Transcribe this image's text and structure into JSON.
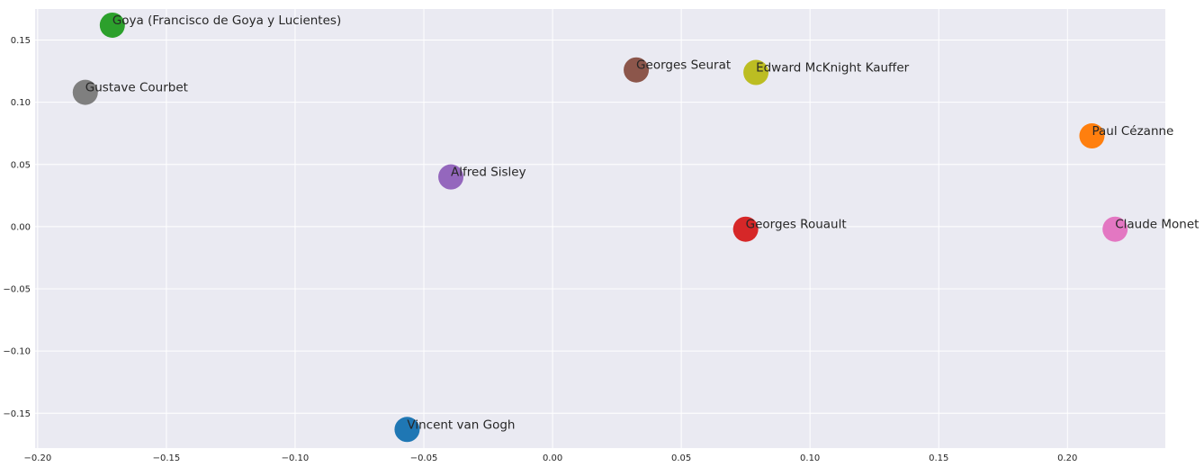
{
  "chart_data": {
    "type": "scatter",
    "title": "",
    "xlabel": "",
    "ylabel": "",
    "xlim": [
      -0.201,
      0.238
    ],
    "ylim": [
      -0.178,
      0.175
    ],
    "grid": true,
    "background": "#eaeaf2",
    "x_ticks": [
      -0.2,
      -0.15,
      -0.1,
      -0.05,
      0.0,
      0.05,
      0.1,
      0.15,
      0.2
    ],
    "x_tick_labels": [
      "−0.20",
      "−0.15",
      "−0.10",
      "−0.05",
      "0.00",
      "0.05",
      "0.10",
      "0.15",
      "0.20"
    ],
    "y_ticks": [
      0.15,
      0.1,
      0.05,
      0.0,
      -0.05,
      -0.1,
      -0.15
    ],
    "y_tick_labels": [
      "0.15",
      "0.10",
      "0.05",
      "0.00",
      "−0.05",
      "−0.10",
      "−0.15"
    ],
    "points": [
      {
        "label": "Vincent van Gogh",
        "x": -0.0565,
        "y": -0.163,
        "color": "#1f77b4"
      },
      {
        "label": "Paul Cézanne",
        "x": 0.2095,
        "y": 0.073,
        "color": "#ff7f0e"
      },
      {
        "label": "Goya (Francisco de Goya y Lucientes)",
        "x": -0.171,
        "y": 0.162,
        "color": "#2ca02c"
      },
      {
        "label": "Georges Rouault",
        "x": 0.075,
        "y": -0.002,
        "color": "#d62728"
      },
      {
        "label": "Alfred Sisley",
        "x": -0.0395,
        "y": 0.04,
        "color": "#9467bd"
      },
      {
        "label": "Georges Seurat",
        "x": 0.0325,
        "y": 0.126,
        "color": "#8c564b"
      },
      {
        "label": "Claude Monet",
        "x": 0.2185,
        "y": -0.002,
        "color": "#e377c2"
      },
      {
        "label": "Gustave Courbet",
        "x": -0.1815,
        "y": 0.108,
        "color": "#7f7f7f"
      },
      {
        "label": "Edward McKnight Kauffer",
        "x": 0.079,
        "y": 0.124,
        "color": "#bcbd22"
      }
    ]
  }
}
